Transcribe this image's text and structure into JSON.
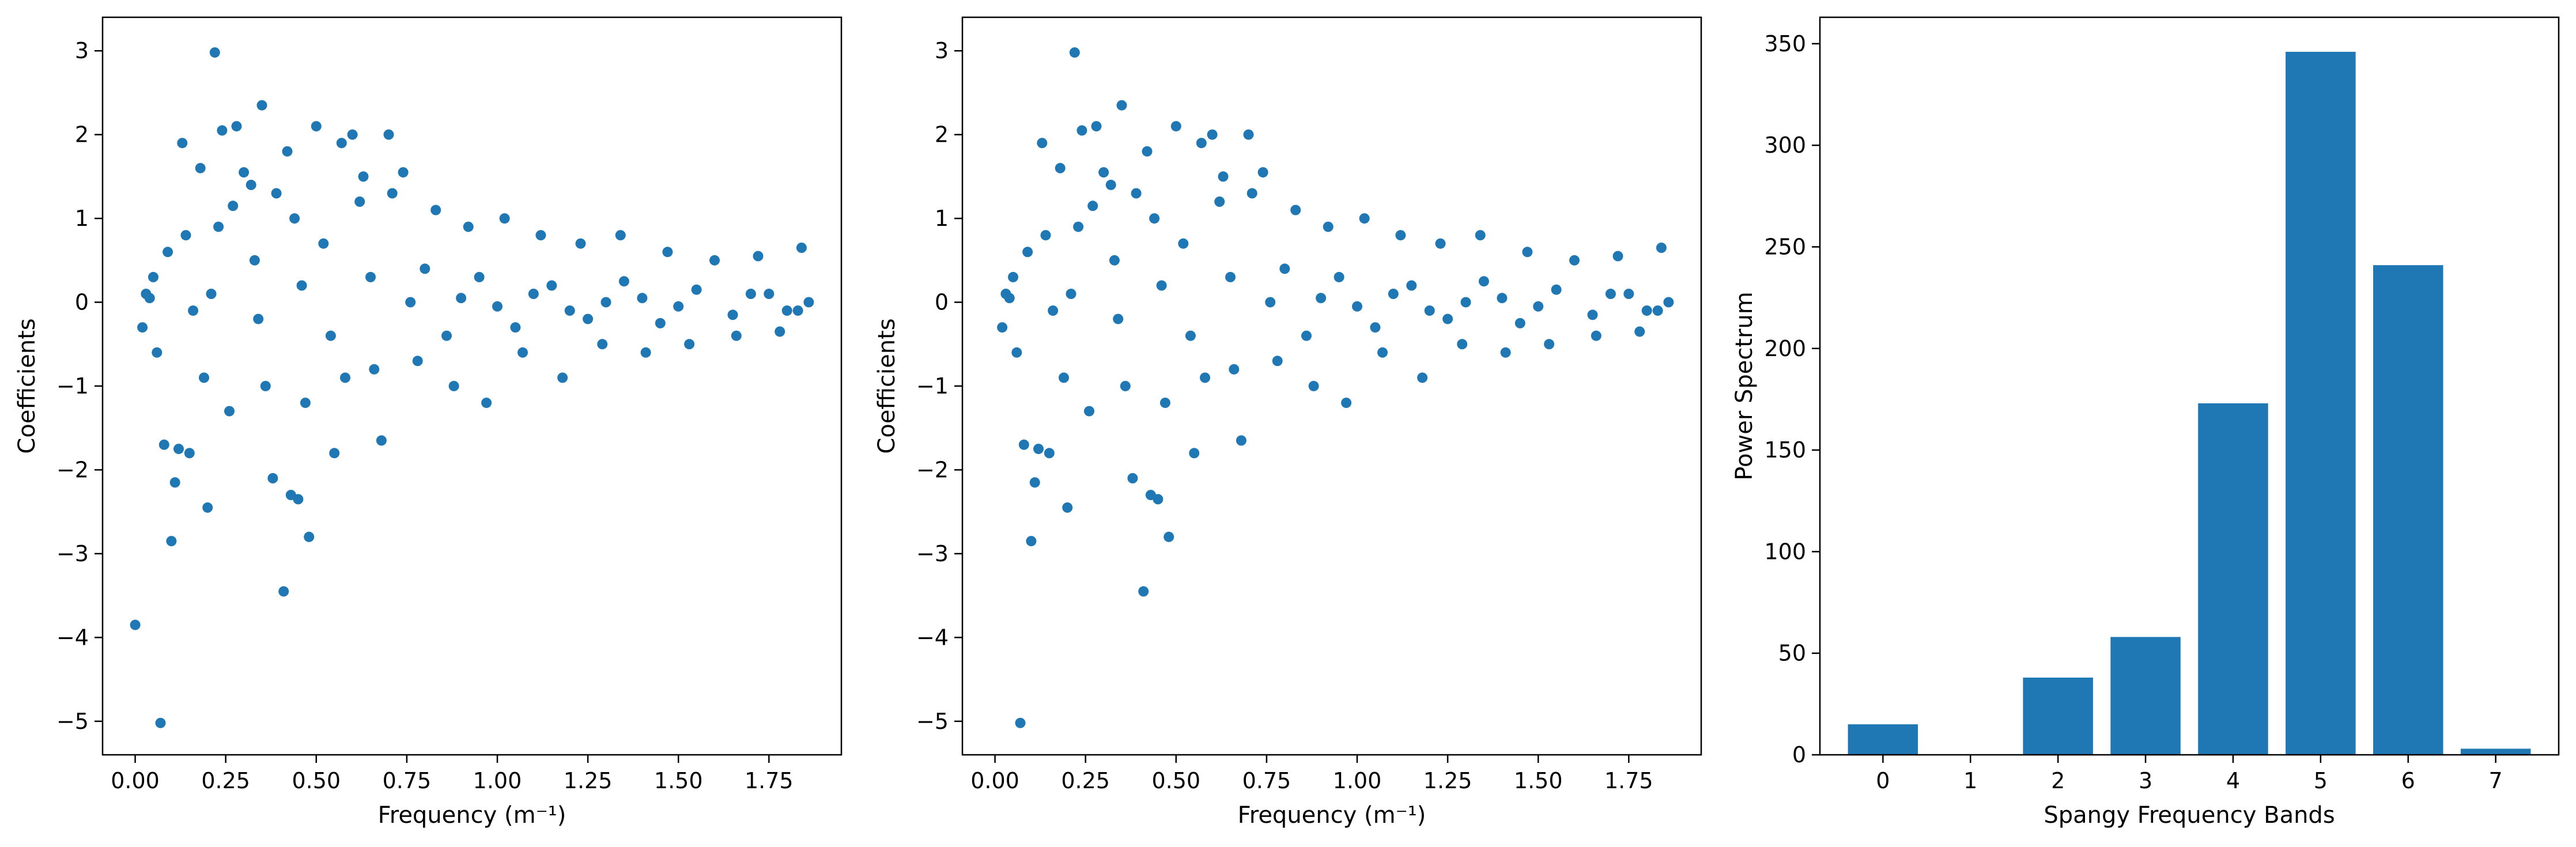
{
  "figure": {
    "background": "#ffffff",
    "point_color": "#1f77b4",
    "bar_color": "#1f77b4"
  },
  "chart_data": [
    {
      "type": "scatter",
      "xlabel": "Frequency (m⁻¹)",
      "ylabel": "Coefficients",
      "xlim": [
        -0.09,
        1.95
      ],
      "ylim": [
        -5.4,
        3.4
      ],
      "xticks": [
        "0.00",
        "0.25",
        "0.50",
        "0.75",
        "1.00",
        "1.25",
        "1.50",
        "1.75"
      ],
      "xtick_values": [
        0,
        0.25,
        0.5,
        0.75,
        1.0,
        1.25,
        1.5,
        1.75
      ],
      "yticks": [
        "−5",
        "−4",
        "−3",
        "−2",
        "−1",
        "0",
        "1",
        "2",
        "3"
      ],
      "ytick_values": [
        -5,
        -4,
        -3,
        -2,
        -1,
        0,
        1,
        2,
        3
      ],
      "grid": false,
      "series": [
        {
          "x": [
            0.0,
            0.07,
            0.1,
            0.11,
            0.08,
            0.12,
            0.15,
            0.2,
            0.22,
            0.24,
            0.28,
            0.3,
            0.35,
            0.38,
            0.41,
            0.43,
            0.45,
            0.48,
            0.5,
            0.55,
            0.57,
            0.6,
            0.63,
            0.68,
            0.7,
            0.74,
            0.42,
            0.39,
            0.32,
            0.27,
            0.23,
            0.18,
            0.13,
            0.09,
            0.05,
            0.03,
            0.02,
            0.06,
            0.14,
            0.19,
            0.26,
            0.33,
            0.36,
            0.44,
            0.47,
            0.52,
            0.58,
            0.62,
            0.66,
            0.71,
            0.78,
            0.83,
            0.88,
            0.92,
            0.97,
            1.02,
            1.07,
            1.12,
            1.18,
            1.23,
            1.29,
            1.34,
            1.41,
            1.47,
            1.53,
            1.6,
            1.66,
            1.72,
            1.78,
            1.84,
            0.8,
            0.86,
            0.95,
            1.05,
            1.15,
            1.25,
            1.35,
            1.45,
            1.55,
            1.65,
            1.75,
            1.83,
            0.65,
            0.54,
            0.46,
            0.34,
            0.21,
            0.16,
            0.04,
            0.76,
            0.9,
            1.0,
            1.1,
            1.2,
            1.3,
            1.4,
            1.5,
            1.7,
            1.8,
            1.86
          ],
          "y": [
            -3.85,
            -5.02,
            -2.85,
            -2.15,
            -1.7,
            -1.75,
            -1.8,
            -2.45,
            2.98,
            2.05,
            2.1,
            1.55,
            2.35,
            -2.1,
            -3.45,
            -2.3,
            -2.35,
            -2.8,
            2.1,
            -1.8,
            1.9,
            2.0,
            1.5,
            -1.65,
            2.0,
            1.55,
            1.8,
            1.3,
            1.4,
            1.15,
            0.9,
            1.6,
            1.9,
            0.6,
            0.3,
            0.1,
            -0.3,
            -0.6,
            0.8,
            -0.9,
            -1.3,
            0.5,
            -1.0,
            1.0,
            -1.2,
            0.7,
            -0.9,
            1.2,
            -0.8,
            1.3,
            -0.7,
            1.1,
            -1.0,
            0.9,
            -1.2,
            1.0,
            -0.6,
            0.8,
            -0.9,
            0.7,
            -0.5,
            0.8,
            -0.6,
            0.6,
            -0.5,
            0.5,
            -0.4,
            0.55,
            -0.35,
            0.65,
            0.4,
            -0.4,
            0.3,
            -0.3,
            0.2,
            -0.2,
            0.25,
            -0.25,
            0.15,
            -0.15,
            0.1,
            -0.1,
            0.3,
            -0.4,
            0.2,
            -0.2,
            0.1,
            -0.1,
            0.05,
            0.0,
            0.05,
            -0.05,
            0.1,
            -0.1,
            0.0,
            0.05,
            -0.05,
            0.1,
            -0.1,
            0.0
          ]
        }
      ]
    },
    {
      "type": "scatter",
      "xlabel": "Frequency (m⁻¹)",
      "ylabel": "Coefficients",
      "xlim": [
        -0.09,
        1.95
      ],
      "ylim": [
        -5.4,
        3.4
      ],
      "xticks": [
        "0.00",
        "0.25",
        "0.50",
        "0.75",
        "1.00",
        "1.25",
        "1.50",
        "1.75"
      ],
      "xtick_values": [
        0,
        0.25,
        0.5,
        0.75,
        1.0,
        1.25,
        1.5,
        1.75
      ],
      "yticks": [
        "−5",
        "−4",
        "−3",
        "−2",
        "−1",
        "0",
        "1",
        "2",
        "3"
      ],
      "ytick_values": [
        -5,
        -4,
        -3,
        -2,
        -1,
        0,
        1,
        2,
        3
      ],
      "grid": false,
      "series": [
        {
          "x": [
            0.07,
            0.1,
            0.11,
            0.08,
            0.12,
            0.15,
            0.2,
            0.22,
            0.24,
            0.28,
            0.3,
            0.35,
            0.38,
            0.41,
            0.43,
            0.45,
            0.48,
            0.5,
            0.55,
            0.57,
            0.6,
            0.63,
            0.68,
            0.7,
            0.74,
            0.42,
            0.39,
            0.32,
            0.27,
            0.23,
            0.18,
            0.13,
            0.09,
            0.05,
            0.03,
            0.02,
            0.06,
            0.14,
            0.19,
            0.26,
            0.33,
            0.36,
            0.44,
            0.47,
            0.52,
            0.58,
            0.62,
            0.66,
            0.71,
            0.78,
            0.83,
            0.88,
            0.92,
            0.97,
            1.02,
            1.07,
            1.12,
            1.18,
            1.23,
            1.29,
            1.34,
            1.41,
            1.47,
            1.53,
            1.6,
            1.66,
            1.72,
            1.78,
            1.84,
            0.8,
            0.86,
            0.95,
            1.05,
            1.15,
            1.25,
            1.35,
            1.45,
            1.55,
            1.65,
            1.75,
            1.83,
            0.65,
            0.54,
            0.46,
            0.34,
            0.21,
            0.16,
            0.04,
            0.76,
            0.9,
            1.0,
            1.1,
            1.2,
            1.3,
            1.4,
            1.5,
            1.7,
            1.8,
            1.86
          ],
          "y": [
            -5.02,
            -2.85,
            -2.15,
            -1.7,
            -1.75,
            -1.8,
            -2.45,
            2.98,
            2.05,
            2.1,
            1.55,
            2.35,
            -2.1,
            -3.45,
            -2.3,
            -2.35,
            -2.8,
            2.1,
            -1.8,
            1.9,
            2.0,
            1.5,
            -1.65,
            2.0,
            1.55,
            1.8,
            1.3,
            1.4,
            1.15,
            0.9,
            1.6,
            1.9,
            0.6,
            0.3,
            0.1,
            -0.3,
            -0.6,
            0.8,
            -0.9,
            -1.3,
            0.5,
            -1.0,
            1.0,
            -1.2,
            0.7,
            -0.9,
            1.2,
            -0.8,
            1.3,
            -0.7,
            1.1,
            -1.0,
            0.9,
            -1.2,
            1.0,
            -0.6,
            0.8,
            -0.9,
            0.7,
            -0.5,
            0.8,
            -0.6,
            0.6,
            -0.5,
            0.5,
            -0.4,
            0.55,
            -0.35,
            0.65,
            0.4,
            -0.4,
            0.3,
            -0.3,
            0.2,
            -0.2,
            0.25,
            -0.25,
            0.15,
            -0.15,
            0.1,
            -0.1,
            0.3,
            -0.4,
            0.2,
            -0.2,
            0.1,
            -0.1,
            0.05,
            0.0,
            0.05,
            -0.05,
            0.1,
            -0.1,
            0.0,
            0.05,
            -0.05,
            0.1,
            -0.1,
            0.0
          ]
        }
      ]
    },
    {
      "type": "bar",
      "xlabel": "Spangy Frequency Bands",
      "ylabel": "Power Spectrum",
      "categories": [
        "0",
        "1",
        "2",
        "3",
        "4",
        "5",
        "6",
        "7"
      ],
      "values": [
        15,
        0,
        38,
        58,
        173,
        346,
        241,
        3
      ],
      "xlim": [
        -0.72,
        7.72
      ],
      "ylim": [
        0,
        363
      ],
      "yticks": [
        "0",
        "50",
        "100",
        "150",
        "200",
        "250",
        "300",
        "350"
      ],
      "ytick_values": [
        0,
        50,
        100,
        150,
        200,
        250,
        300,
        350
      ],
      "grid": false
    }
  ]
}
